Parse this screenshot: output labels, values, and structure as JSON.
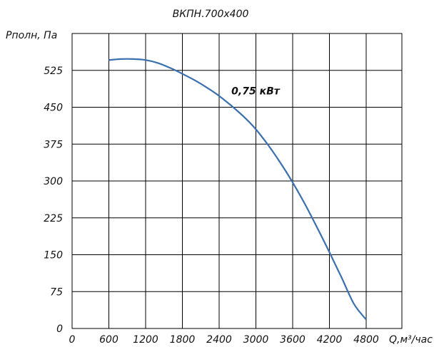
{
  "chart_data": {
    "type": "line",
    "title": "ВКПН.700х400",
    "ylabel": "Pполн, Па",
    "xlabel": "Q,м³/час",
    "xlim": [
      0,
      4800
    ],
    "ylim": [
      0,
      600
    ],
    "x_ticks": [
      0,
      600,
      1200,
      1800,
      2400,
      3000,
      3600,
      4200,
      4800
    ],
    "x_tick_labels": [
      "0",
      "600",
      "1200",
      "1800",
      "2400",
      "3000",
      "3600",
      "4200",
      "4800"
    ],
    "y_ticks": [
      0,
      75,
      150,
      225,
      300,
      375,
      450,
      525
    ],
    "y_tick_labels": [
      "0",
      "75",
      "150",
      "225",
      "300",
      "375",
      "450",
      "525"
    ],
    "grid": true,
    "annotations": [
      {
        "text": "0,75 кВт",
        "x": 2600,
        "y": 476
      }
    ],
    "series": [
      {
        "color": "#3a6fb0",
        "x": [
          600,
          800,
          1000,
          1200,
          1400,
          1600,
          1800,
          2000,
          2200,
          2400,
          2600,
          2800,
          3000,
          3200,
          3400,
          3600,
          3800,
          4000,
          4200,
          4400,
          4600,
          4800
        ],
        "y": [
          546,
          548,
          548,
          546,
          540,
          530,
          518,
          505,
          490,
          473,
          453,
          431,
          405,
          373,
          337,
          297,
          253,
          205,
          155,
          103,
          50,
          18
        ]
      }
    ]
  }
}
